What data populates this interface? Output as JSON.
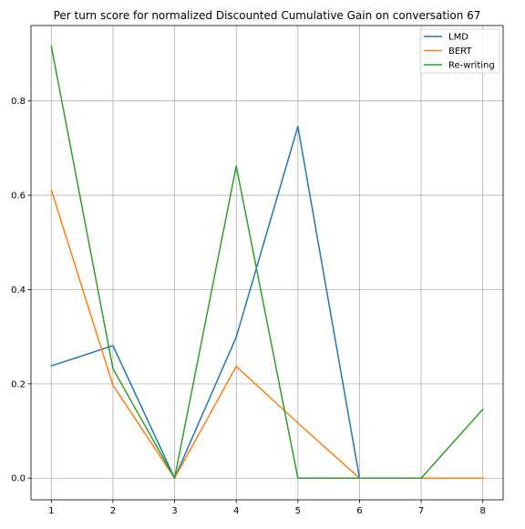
{
  "chart_data": {
    "type": "line",
    "title": "Per turn score for normalized Discounted Cumulative Gain on conversation 67",
    "xlabel": "",
    "ylabel": "",
    "x": [
      1,
      2,
      3,
      4,
      5,
      6,
      7,
      8
    ],
    "xlim": [
      0.67,
      8.33
    ],
    "ylim": [
      -0.046,
      0.96
    ],
    "xticks": [
      "1",
      "2",
      "3",
      "4",
      "5",
      "6",
      "7",
      "8"
    ],
    "yticks": [
      "0.0",
      "0.2",
      "0.4",
      "0.6",
      "0.8"
    ],
    "grid": true,
    "legend_position": "top-right",
    "series": [
      {
        "name": "LMD",
        "color": "#1f77b4",
        "values": [
          0.238,
          0.281,
          0.0,
          0.299,
          0.746,
          0.0,
          0.0,
          0.0
        ]
      },
      {
        "name": "BERT",
        "color": "#ff7f0e",
        "values": [
          0.611,
          0.197,
          0.0,
          0.237,
          0.117,
          0.0,
          0.0,
          0.0
        ]
      },
      {
        "name": "Re-writing",
        "color": "#2ca02c",
        "values": [
          0.916,
          0.232,
          0.0,
          0.662,
          0.0,
          0.0,
          0.0,
          0.146
        ]
      }
    ]
  }
}
